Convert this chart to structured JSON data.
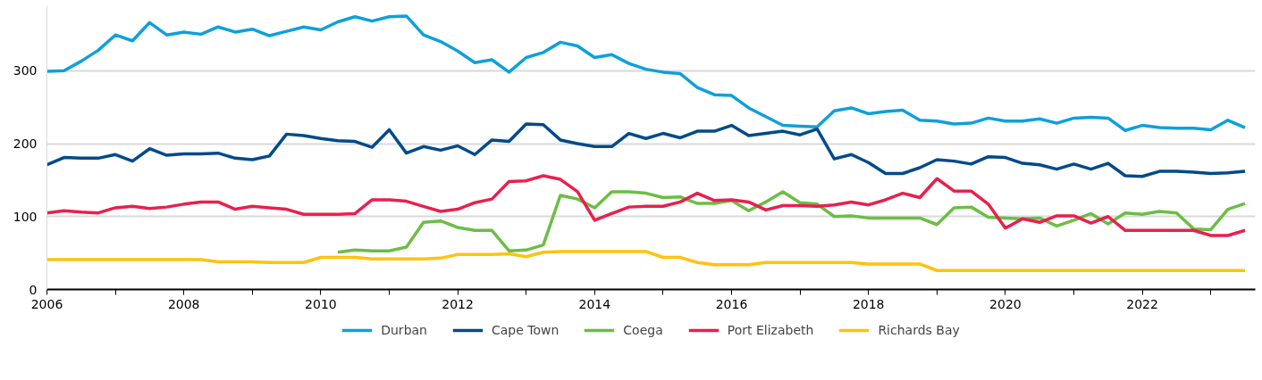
{
  "chart_data": {
    "type": "line",
    "x": [
      2006,
      2006.25,
      2006.5,
      2006.75,
      2007,
      2007.25,
      2007.5,
      2007.75,
      2008,
      2008.25,
      2008.5,
      2008.75,
      2009,
      2009.25,
      2009.5,
      2009.75,
      2010,
      2010.25,
      2010.5,
      2010.75,
      2011,
      2011.25,
      2011.5,
      2011.75,
      2012,
      2012.25,
      2012.5,
      2012.75,
      2013,
      2013.25,
      2013.5,
      2013.75,
      2014,
      2014.25,
      2014.5,
      2014.75,
      2015,
      2015.25,
      2015.5,
      2015.75,
      2016,
      2016.25,
      2016.5,
      2016.75,
      2017,
      2017.25,
      2017.5,
      2017.75,
      2018,
      2018.25,
      2018.5,
      2018.75,
      2019,
      2019.25,
      2019.5,
      2019.75,
      2020,
      2020.25,
      2020.5,
      2020.75,
      2021,
      2021.25,
      2021.5,
      2021.75,
      2022,
      2022.25,
      2022.5,
      2022.75,
      2023,
      2023.25,
      2023.5
    ],
    "series": [
      {
        "name": "Durban",
        "color": "#0ea0dc",
        "values": [
          299,
          300,
          313,
          328,
          349,
          341,
          366,
          349,
          353,
          350,
          360,
          353,
          357,
          348,
          354,
          360,
          356,
          367,
          374,
          368,
          374,
          375,
          349,
          340,
          327,
          311,
          315,
          298,
          318,
          325,
          339,
          334,
          318,
          322,
          310,
          302,
          298,
          296,
          277,
          267,
          266,
          249,
          237,
          225,
          224,
          223,
          245,
          249,
          241,
          244,
          246,
          232,
          231,
          227,
          228,
          235,
          231,
          231,
          234,
          228,
          235,
          236,
          235,
          218,
          225,
          222,
          221,
          221,
          219,
          232,
          222
        ]
      },
      {
        "name": "Cape Town",
        "color": "#004a8a",
        "values": [
          171,
          181,
          180,
          180,
          185,
          176,
          193,
          184,
          186,
          186,
          187,
          180,
          178,
          183,
          213,
          211,
          207,
          204,
          203,
          195,
          219,
          187,
          196,
          191,
          197,
          185,
          205,
          203,
          227,
          226,
          205,
          200,
          196,
          196,
          214,
          207,
          214,
          208,
          217,
          217,
          225,
          211,
          214,
          217,
          212,
          220,
          179,
          185,
          174,
          159,
          159,
          167,
          178,
          176,
          172,
          182,
          181,
          173,
          171,
          165,
          172,
          165,
          173,
          156,
          155,
          162,
          162,
          161,
          159,
          160,
          162
        ]
      },
      {
        "name": "Coega",
        "color": "#6cbd45",
        "values": [
          null,
          null,
          null,
          null,
          null,
          null,
          null,
          null,
          null,
          null,
          null,
          null,
          null,
          null,
          null,
          null,
          null,
          51,
          54,
          53,
          53,
          58,
          92,
          94,
          85,
          81,
          81,
          53,
          54,
          61,
          129,
          124,
          112,
          134,
          134,
          132,
          126,
          127,
          118,
          118,
          122,
          108,
          120,
          134,
          119,
          117,
          100,
          101,
          98,
          98,
          98,
          98,
          89,
          112,
          113,
          99,
          98,
          97,
          98,
          87,
          95,
          104,
          90,
          105,
          103,
          107,
          105,
          83,
          82,
          110,
          118
        ]
      },
      {
        "name": "Port Elizabeth",
        "color": "#e8204e",
        "values": [
          105,
          108,
          106,
          105,
          112,
          114,
          111,
          113,
          117,
          120,
          120,
          110,
          114,
          112,
          110,
          103,
          103,
          103,
          104,
          123,
          123,
          121,
          114,
          107,
          110,
          119,
          124,
          148,
          149,
          156,
          151,
          134,
          95,
          104,
          113,
          114,
          114,
          120,
          132,
          122,
          123,
          120,
          109,
          115,
          115,
          114,
          116,
          120,
          116,
          123,
          132,
          126,
          152,
          135,
          135,
          117,
          84,
          97,
          92,
          101,
          101,
          91,
          100,
          81,
          81,
          81,
          81,
          81,
          74,
          74,
          81
        ]
      },
      {
        "name": "Richards Bay",
        "color": "#ffc20e",
        "values": [
          41,
          41,
          41,
          41,
          41,
          41,
          41,
          41,
          41,
          41,
          38,
          38,
          38,
          37,
          37,
          37,
          44,
          44,
          44,
          42,
          42,
          42,
          42,
          43,
          48,
          48,
          48,
          49,
          45,
          51,
          52,
          52,
          52,
          52,
          52,
          52,
          44,
          44,
          37,
          34,
          34,
          34,
          37,
          37,
          37,
          37,
          37,
          37,
          35,
          35,
          35,
          35,
          26,
          26,
          26,
          26,
          26,
          26,
          26,
          26,
          26,
          26,
          26,
          26,
          26,
          26,
          26,
          26,
          26,
          26,
          26
        ]
      }
    ],
    "xlim": [
      2006,
      2023.65
    ],
    "ylim": [
      0,
      389
    ],
    "xticks": [
      2006,
      {
        "value": 2007,
        "label": null
      },
      2008,
      {
        "value": 2009,
        "label": null
      },
      2010,
      {
        "value": 2011,
        "label": null
      },
      2012,
      {
        "value": 2013,
        "label": null
      },
      2014,
      {
        "value": 2015,
        "label": null
      },
      2016,
      {
        "value": 2017,
        "label": null
      },
      2018,
      {
        "value": 2019,
        "label": null
      },
      2020,
      {
        "value": 2021,
        "label": null
      },
      2022,
      {
        "value": 2023,
        "label": null
      }
    ],
    "yticks": [
      0,
      100,
      200,
      300
    ],
    "grid": "y",
    "legend": "bottom",
    "marker": "none",
    "line_style": "solid"
  }
}
